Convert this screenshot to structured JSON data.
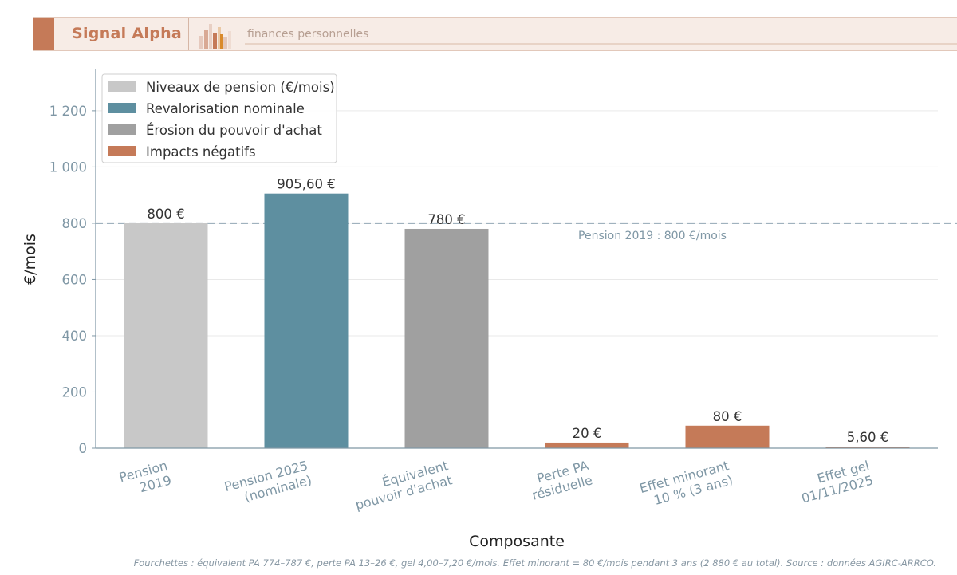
{
  "header": {
    "brand": "Signal Alpha",
    "tagline": "finances personnelles"
  },
  "colors": {
    "accent": "#c57a58",
    "blue": "#5e8fa0",
    "light_grey": "#c8c8c8",
    "mid_grey": "#a0a0a0",
    "axis": "#7f97a5"
  },
  "chart_data": {
    "type": "bar",
    "title": "",
    "xlabel": "Composante",
    "ylabel": "€/mois",
    "ylim": [
      0,
      1350
    ],
    "yticks": [
      0,
      200,
      400,
      600,
      800,
      1000,
      1200
    ],
    "ytick_labels": [
      "0",
      "200",
      "400",
      "600",
      "800",
      "1 000",
      "1 200"
    ],
    "grid": "horizontal",
    "legend_position": "top-left",
    "categories": [
      [
        "Pension",
        "2019"
      ],
      [
        "Pension 2025",
        "(nominale)"
      ],
      [
        "Équivalent",
        "pouvoir d'achat"
      ],
      [
        "Perte PA",
        "résiduelle"
      ],
      [
        "Effet minorant",
        "10 % (3 ans)"
      ],
      [
        "Effet gel",
        "01/11/2025"
      ]
    ],
    "values": [
      800,
      905.6,
      780,
      20,
      80,
      5.6
    ],
    "value_labels": [
      "800 €",
      "905,60 €",
      "780 €",
      "20 €",
      "80 €",
      "5,60 €"
    ],
    "bar_groups": [
      "level",
      "nominal",
      "erosion",
      "negative",
      "negative",
      "negative"
    ],
    "legend": [
      {
        "key": "level",
        "label": "Niveaux de pension (€/mois)",
        "color": "#c8c8c8"
      },
      {
        "key": "nominal",
        "label": "Revalorisation nominale",
        "color": "#5e8fa0"
      },
      {
        "key": "erosion",
        "label": "Érosion du pouvoir d'achat",
        "color": "#a0a0a0"
      },
      {
        "key": "negative",
        "label": "Impacts négatifs",
        "color": "#c57a58"
      }
    ],
    "reference_line": {
      "value": 800,
      "label": "Pension 2019 : 800 €/mois",
      "color": "#7f97a5"
    }
  },
  "footnote": "Fourchettes : équivalent PA 774–787 €, perte PA 13–26 €, gel 4,00–7,20 €/mois. Effet minorant = 80 €/mois pendant 3 ans (2 880 € au total). Source : données AGIRC-ARRCO."
}
